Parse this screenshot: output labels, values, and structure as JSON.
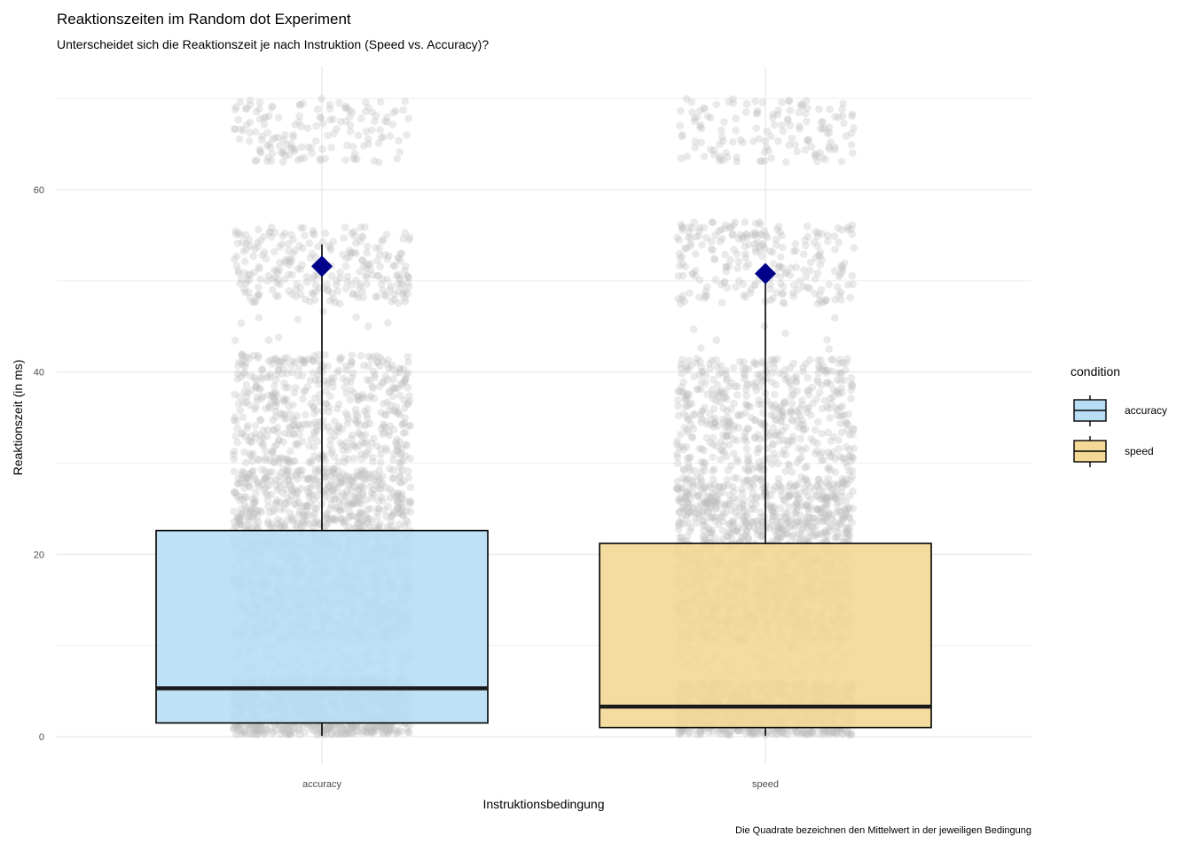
{
  "chart_data": {
    "type": "boxplot",
    "title": "Reaktionszeiten im Random dot Experiment",
    "subtitle": "Unterscheidet sich die Reaktionszeit je nach Instruktion (Speed vs. Accuracy)?",
    "xlabel": "Instruktionsbedingung",
    "ylabel": "Reaktionszeit (in ms)",
    "caption": "Die Quadrate bezeichnen den Mittelwert in der jeweiligen Bedingung",
    "ylim": [
      -2,
      74
    ],
    "yticks": [
      0,
      20,
      40,
      60
    ],
    "categories": [
      "accuracy",
      "speed"
    ],
    "legend": {
      "title": "condition",
      "position": "right",
      "entries": [
        "accuracy",
        "speed"
      ]
    },
    "colors": {
      "accuracy": "#b7def4",
      "speed": "#f3d896",
      "points": "#bdbdbd",
      "mean_marker": "#00008b",
      "grid": "#ebebeb"
    },
    "series": [
      {
        "name": "accuracy",
        "min": 0.1,
        "q1": 1.5,
        "median": 5.3,
        "q3": 22.6,
        "max": 54.0,
        "mean": 51.6,
        "point_clusters": [
          {
            "lo": 0.2,
            "hi": 6.5,
            "weight": 1000
          },
          {
            "lo": 7.0,
            "hi": 10.0,
            "weight": 80
          },
          {
            "lo": 10.5,
            "hi": 21.5,
            "weight": 900
          },
          {
            "lo": 21.5,
            "hi": 29.5,
            "weight": 550
          },
          {
            "lo": 30.0,
            "hi": 42.0,
            "weight": 500
          },
          {
            "lo": 43.0,
            "hi": 47.0,
            "weight": 10
          },
          {
            "lo": 47.5,
            "hi": 56.0,
            "weight": 260
          },
          {
            "lo": 63.0,
            "hi": 70.0,
            "weight": 150
          }
        ]
      },
      {
        "name": "speed",
        "min": 0.1,
        "q1": 1.0,
        "median": 3.3,
        "q3": 21.2,
        "max": 50.8,
        "mean": 50.8,
        "point_clusters": [
          {
            "lo": 0.2,
            "hi": 6.0,
            "weight": 1000
          },
          {
            "lo": 7.0,
            "hi": 10.0,
            "weight": 60
          },
          {
            "lo": 10.5,
            "hi": 21.0,
            "weight": 850
          },
          {
            "lo": 21.0,
            "hi": 28.5,
            "weight": 550
          },
          {
            "lo": 29.0,
            "hi": 41.5,
            "weight": 500
          },
          {
            "lo": 42.5,
            "hi": 46.0,
            "weight": 8
          },
          {
            "lo": 47.5,
            "hi": 56.5,
            "weight": 240
          },
          {
            "lo": 63.0,
            "hi": 70.0,
            "weight": 140
          }
        ]
      }
    ]
  }
}
